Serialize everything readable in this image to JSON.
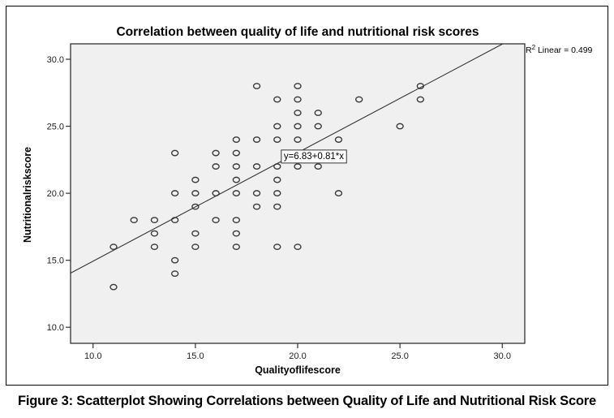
{
  "figure": {
    "caption": "Figure 3: Scatterplot Showing Correlations between Quality of Life and Nutritional Risk Score"
  },
  "chart_data": {
    "type": "scatter",
    "title": "Correlation between quality of life and nutritional risk scores",
    "xlabel": "Qualityoflifescore",
    "ylabel": "Nutritionalriskscore",
    "xlim": [
      8.9,
      31.1
    ],
    "ylim": [
      8.8,
      31.15
    ],
    "xticks": [
      10,
      15,
      20,
      25,
      30
    ],
    "yticks": [
      10,
      15,
      20,
      25,
      30
    ],
    "xtick_labels": [
      "10.0",
      "15.0",
      "20.0",
      "25.0",
      "30.0"
    ],
    "ytick_labels": [
      "10.0",
      "15.0",
      "20.0",
      "25.0",
      "30.0"
    ],
    "grid": false,
    "marker": "open-circle",
    "plot_background": "#f0f0f0",
    "points": [
      [
        11,
        16
      ],
      [
        11,
        13
      ],
      [
        12,
        18
      ],
      [
        13,
        18
      ],
      [
        13,
        17
      ],
      [
        13,
        16
      ],
      [
        14,
        23
      ],
      [
        14,
        20
      ],
      [
        14,
        18
      ],
      [
        14,
        15
      ],
      [
        14,
        14
      ],
      [
        15,
        21
      ],
      [
        15,
        20
      ],
      [
        15,
        19
      ],
      [
        15,
        17
      ],
      [
        15,
        16
      ],
      [
        16,
        23
      ],
      [
        16,
        22
      ],
      [
        16,
        20
      ],
      [
        16,
        18
      ],
      [
        17,
        24
      ],
      [
        17,
        23
      ],
      [
        17,
        22
      ],
      [
        17,
        21
      ],
      [
        17,
        20
      ],
      [
        17,
        18
      ],
      [
        17,
        17
      ],
      [
        17,
        16
      ],
      [
        18,
        28
      ],
      [
        18,
        24
      ],
      [
        18,
        22
      ],
      [
        18,
        20
      ],
      [
        18,
        19
      ],
      [
        19,
        27
      ],
      [
        19,
        25
      ],
      [
        19,
        24
      ],
      [
        19,
        22
      ],
      [
        19,
        21
      ],
      [
        19,
        20
      ],
      [
        19,
        19
      ],
      [
        19,
        16
      ],
      [
        20,
        28
      ],
      [
        20,
        27
      ],
      [
        20,
        26
      ],
      [
        20,
        25
      ],
      [
        20,
        24
      ],
      [
        20,
        22
      ],
      [
        20,
        16
      ],
      [
        21,
        26
      ],
      [
        21,
        25
      ],
      [
        21,
        22
      ],
      [
        22,
        24
      ],
      [
        22,
        23
      ],
      [
        22,
        20
      ],
      [
        23,
        27
      ],
      [
        25,
        25
      ],
      [
        26,
        28
      ],
      [
        26,
        27
      ]
    ],
    "fit_line": {
      "type": "linear",
      "intercept": 6.83,
      "slope": 0.81,
      "equation_label": "y=6.83+0.81*x",
      "equation_anchor": [
        19.2,
        22.8
      ]
    },
    "r2_label": {
      "prefix": "R",
      "superscript": "2",
      "text": " Linear = 0.499"
    }
  }
}
